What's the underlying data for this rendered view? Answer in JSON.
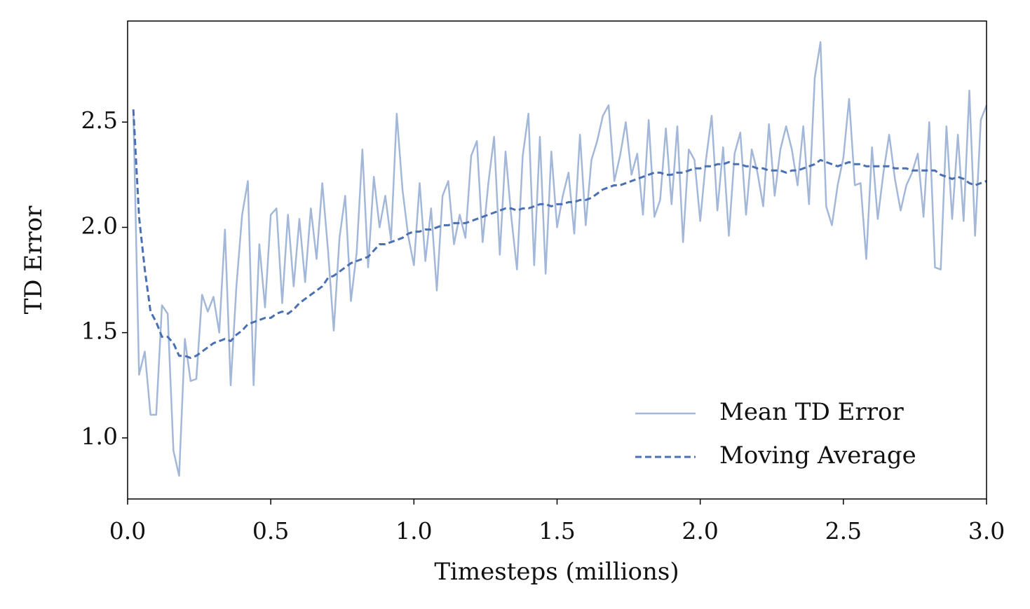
{
  "chart_data": {
    "type": "line",
    "xlabel": "Timesteps (millions)",
    "ylabel": "TD Error",
    "xlim": [
      0,
      3.0
    ],
    "ylim": [
      0.71,
      2.98
    ],
    "xticks": [
      {
        "value": 0,
        "label": "0.0"
      },
      0.5,
      {
        "value": 1,
        "label": "1.0"
      },
      1.5,
      {
        "value": 2,
        "label": "2.0"
      },
      2.5,
      {
        "value": 3,
        "label": "3.0"
      }
    ],
    "yticks": [
      {
        "value": 1,
        "label": "1.0"
      },
      1.5,
      {
        "value": 2,
        "label": "2.0"
      },
      2.5
    ],
    "legend": "lower right",
    "x": [
      0.02,
      0.04,
      0.06,
      0.08,
      0.1,
      0.12,
      0.14,
      0.16,
      0.18,
      0.2,
      0.22,
      0.24,
      0.26,
      0.28,
      0.3,
      0.32,
      0.34,
      0.36,
      0.38,
      0.4,
      0.42,
      0.44,
      0.46,
      0.48,
      0.5,
      0.52,
      0.54,
      0.56,
      0.58,
      0.6,
      0.62,
      0.64,
      0.66,
      0.68,
      0.7,
      0.72,
      0.74,
      0.76,
      0.78,
      0.8,
      0.82,
      0.84,
      0.86,
      0.88,
      0.9,
      0.92,
      0.94,
      0.96,
      0.98,
      1.0,
      1.02,
      1.04,
      1.06,
      1.08,
      1.1,
      1.12,
      1.14,
      1.16,
      1.18,
      1.2,
      1.22,
      1.24,
      1.26,
      1.28,
      1.3,
      1.32,
      1.34,
      1.36,
      1.38,
      1.4,
      1.42,
      1.44,
      1.46,
      1.48,
      1.5,
      1.52,
      1.54,
      1.56,
      1.58,
      1.6,
      1.62,
      1.64,
      1.66,
      1.68,
      1.7,
      1.72,
      1.74,
      1.76,
      1.78,
      1.8,
      1.82,
      1.84,
      1.86,
      1.88,
      1.9,
      1.92,
      1.94,
      1.96,
      1.98,
      2.0,
      2.02,
      2.04,
      2.06,
      2.08,
      2.1,
      2.12,
      2.14,
      2.16,
      2.18,
      2.2,
      2.22,
      2.24,
      2.26,
      2.28,
      2.3,
      2.32,
      2.34,
      2.36,
      2.38,
      2.4,
      2.42,
      2.44,
      2.46,
      2.48,
      2.5,
      2.52,
      2.54,
      2.56,
      2.58,
      2.6,
      2.62,
      2.64,
      2.66,
      2.68,
      2.7,
      2.72,
      2.74,
      2.76,
      2.78,
      2.8,
      2.82,
      2.84,
      2.86,
      2.88,
      2.9,
      2.92,
      2.94,
      2.96,
      2.98,
      3.0
    ],
    "series": [
      {
        "name": "Mean TD Error",
        "color": "#a3b7d9",
        "linestyle": "solid",
        "values": [
          2.56,
          1.3,
          1.41,
          1.11,
          1.11,
          1.63,
          1.59,
          0.94,
          0.82,
          1.47,
          1.27,
          1.28,
          1.68,
          1.6,
          1.67,
          1.5,
          1.99,
          1.25,
          1.72,
          2.06,
          2.22,
          1.25,
          1.92,
          1.62,
          2.06,
          2.09,
          1.64,
          2.06,
          1.72,
          2.04,
          1.74,
          2.09,
          1.85,
          2.21,
          1.89,
          1.51,
          1.95,
          2.15,
          1.65,
          1.88,
          2.37,
          1.81,
          2.24,
          2.0,
          2.15,
          1.94,
          2.54,
          2.18,
          1.96,
          1.82,
          2.21,
          1.84,
          2.09,
          1.7,
          2.15,
          2.22,
          1.92,
          2.06,
          1.95,
          2.34,
          2.41,
          1.93,
          2.21,
          2.43,
          1.87,
          2.36,
          2.05,
          1.8,
          2.34,
          2.54,
          1.82,
          2.43,
          1.78,
          2.36,
          2.0,
          2.15,
          2.26,
          1.97,
          2.44,
          2.01,
          2.32,
          2.41,
          2.53,
          2.58,
          2.22,
          2.34,
          2.5,
          2.25,
          2.35,
          2.06,
          2.51,
          2.05,
          2.13,
          2.47,
          2.11,
          2.48,
          1.93,
          2.37,
          2.32,
          2.03,
          2.32,
          2.53,
          2.08,
          2.38,
          1.96,
          2.35,
          2.45,
          2.06,
          2.37,
          2.26,
          2.1,
          2.49,
          2.15,
          2.37,
          2.48,
          2.37,
          2.2,
          2.48,
          2.11,
          2.71,
          2.88,
          2.1,
          2.01,
          2.2,
          2.33,
          2.61,
          2.2,
          2.21,
          1.85,
          2.38,
          2.04,
          2.26,
          2.44,
          2.23,
          2.08,
          2.2,
          2.26,
          2.35,
          2.05,
          2.5,
          1.81,
          1.8,
          2.48,
          2.04,
          2.44,
          2.03,
          2.65,
          1.96,
          2.51,
          2.58
        ]
      },
      {
        "name": "Moving Average",
        "color": "#4a70b2",
        "linestyle": "dashed",
        "values": [
          2.56,
          2.05,
          1.8,
          1.6,
          1.55,
          1.48,
          1.48,
          1.45,
          1.39,
          1.39,
          1.38,
          1.39,
          1.41,
          1.43,
          1.45,
          1.46,
          1.47,
          1.46,
          1.49,
          1.51,
          1.54,
          1.55,
          1.56,
          1.57,
          1.57,
          1.59,
          1.6,
          1.59,
          1.61,
          1.64,
          1.66,
          1.68,
          1.7,
          1.72,
          1.76,
          1.77,
          1.79,
          1.81,
          1.83,
          1.84,
          1.85,
          1.86,
          1.89,
          1.92,
          1.92,
          1.93,
          1.94,
          1.95,
          1.97,
          1.98,
          1.98,
          1.99,
          1.99,
          2.0,
          2.01,
          2.01,
          2.02,
          2.02,
          2.02,
          2.03,
          2.04,
          2.05,
          2.06,
          2.07,
          2.08,
          2.09,
          2.09,
          2.08,
          2.09,
          2.09,
          2.1,
          2.11,
          2.11,
          2.1,
          2.11,
          2.11,
          2.12,
          2.12,
          2.13,
          2.13,
          2.14,
          2.16,
          2.18,
          2.19,
          2.2,
          2.2,
          2.21,
          2.22,
          2.23,
          2.24,
          2.25,
          2.26,
          2.26,
          2.25,
          2.25,
          2.26,
          2.26,
          2.27,
          2.28,
          2.28,
          2.29,
          2.29,
          2.3,
          2.3,
          2.31,
          2.3,
          2.3,
          2.29,
          2.29,
          2.28,
          2.28,
          2.27,
          2.27,
          2.27,
          2.26,
          2.27,
          2.27,
          2.28,
          2.29,
          2.3,
          2.32,
          2.31,
          2.3,
          2.29,
          2.3,
          2.31,
          2.3,
          2.3,
          2.29,
          2.29,
          2.29,
          2.29,
          2.29,
          2.28,
          2.28,
          2.28,
          2.27,
          2.27,
          2.27,
          2.27,
          2.27,
          2.25,
          2.24,
          2.23,
          2.24,
          2.23,
          2.21,
          2.2,
          2.21,
          2.22
        ]
      }
    ]
  }
}
